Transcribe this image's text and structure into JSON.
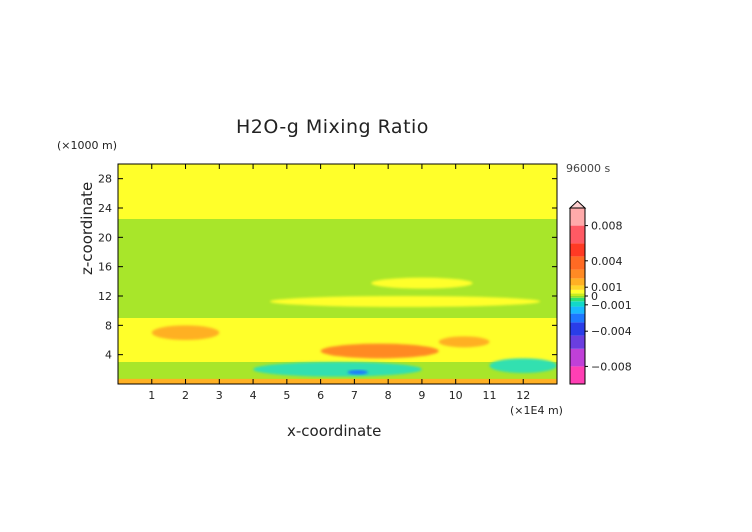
{
  "chart_data": {
    "type": "heatmap",
    "title": "H2O-g Mixing Ratio",
    "time_label": "96000 s",
    "xlabel": "x-coordinate",
    "ylabel": "z-coordinate",
    "x_unit_label": "(×1E4 m)",
    "y_unit_label": "(×1000 m)",
    "xlim": [
      0,
      13
    ],
    "ylim": [
      0,
      30
    ],
    "x_ticks": [
      1,
      2,
      3,
      4,
      5,
      6,
      7,
      8,
      9,
      10,
      11,
      12
    ],
    "y_ticks": [
      4,
      8,
      12,
      16,
      20,
      24,
      28
    ],
    "colorbar": {
      "tick_labels": [
        "0.008",
        "0.004",
        "0.001",
        "0",
        "−0.001",
        "−0.004",
        "−0.008"
      ],
      "tick_values": [
        0.008,
        0.004,
        0.001,
        0,
        -0.001,
        -0.004,
        -0.008
      ],
      "range": [
        -0.01,
        0.01
      ],
      "levels": [
        {
          "from": -0.01,
          "to": -0.008,
          "color": "#ff3fb4"
        },
        {
          "from": -0.008,
          "to": -0.006,
          "color": "#c040d8"
        },
        {
          "from": -0.006,
          "to": -0.0045,
          "color": "#6a3ee0"
        },
        {
          "from": -0.0045,
          "to": -0.003,
          "color": "#2a3de8"
        },
        {
          "from": -0.003,
          "to": -0.002,
          "color": "#1e78ff"
        },
        {
          "from": -0.002,
          "to": -0.0012,
          "color": "#19b8ff"
        },
        {
          "from": -0.0012,
          "to": -0.0006,
          "color": "#12d8c8"
        },
        {
          "from": -0.0006,
          "to": -0.0002,
          "color": "#30e070"
        },
        {
          "from": -0.0002,
          "to": 0.0,
          "color": "#8be02c"
        },
        {
          "from": 0.0,
          "to": 0.0003,
          "color": "#c8ec1c"
        },
        {
          "from": 0.0003,
          "to": 0.0007,
          "color": "#ffff2a"
        },
        {
          "from": 0.0007,
          "to": 0.0012,
          "color": "#ffd62a"
        },
        {
          "from": 0.0012,
          "to": 0.002,
          "color": "#ffb024"
        },
        {
          "from": 0.002,
          "to": 0.003,
          "color": "#ff8a24"
        },
        {
          "from": 0.003,
          "to": 0.0045,
          "color": "#ff6a24"
        },
        {
          "from": 0.0045,
          "to": 0.006,
          "color": "#ff3a24"
        },
        {
          "from": 0.006,
          "to": 0.008,
          "color": "#ff5a64"
        },
        {
          "from": 0.008,
          "to": 0.01,
          "color": "#ffaaaa"
        }
      ]
    },
    "field_regions": [
      {
        "name": "upper-band",
        "x": [
          0,
          13
        ],
        "z": [
          22.5,
          30
        ],
        "value": 0.0005,
        "color": "#ffff2a"
      },
      {
        "name": "mid-layer",
        "x": [
          0,
          13
        ],
        "z": [
          9,
          22.5
        ],
        "value": -0.0001,
        "color": "#a8e62a"
      },
      {
        "name": "yellow-streak-1",
        "x": [
          7.5,
          10.5
        ],
        "z": [
          13,
          14.5
        ],
        "value": 0.0005,
        "color": "#ffff2a"
      },
      {
        "name": "yellow-streak-2",
        "x": [
          4.5,
          12.5
        ],
        "z": [
          10.5,
          12
        ],
        "value": 0.0005,
        "color": "#ffff2a"
      },
      {
        "name": "lower-layer",
        "x": [
          0,
          13
        ],
        "z": [
          3,
          9
        ],
        "value": 0.0005,
        "color": "#ffff2a"
      },
      {
        "name": "surface-layer",
        "x": [
          0,
          13
        ],
        "z": [
          0,
          3
        ],
        "value": -0.0001,
        "color": "#a8e62a"
      },
      {
        "name": "warm-blob-1",
        "x": [
          1,
          3
        ],
        "z": [
          6,
          8
        ],
        "value": 0.0015,
        "color": "#ffb024"
      },
      {
        "name": "warm-blob-2",
        "x": [
          6,
          9.5
        ],
        "z": [
          3.5,
          5.5
        ],
        "value": 0.0025,
        "color": "#ff8a24"
      },
      {
        "name": "warm-blob-3",
        "x": [
          9.5,
          11
        ],
        "z": [
          5,
          6.5
        ],
        "value": 0.0015,
        "color": "#ffb024"
      },
      {
        "name": "cyan-patch-1",
        "x": [
          4,
          9
        ],
        "z": [
          1,
          3
        ],
        "value": -0.0008,
        "color": "#30e0b0"
      },
      {
        "name": "cyan-patch-2",
        "x": [
          11,
          13
        ],
        "z": [
          1.5,
          3.5
        ],
        "value": -0.0008,
        "color": "#30e0b0"
      },
      {
        "name": "blue-spot",
        "x": [
          6.8,
          7.4
        ],
        "z": [
          1.3,
          1.9
        ],
        "value": -0.002,
        "color": "#1e78ff"
      },
      {
        "name": "ground-band",
        "x": [
          0,
          13
        ],
        "z": [
          0,
          0.7
        ],
        "value": 0.0015,
        "color": "#ffb024"
      }
    ]
  }
}
